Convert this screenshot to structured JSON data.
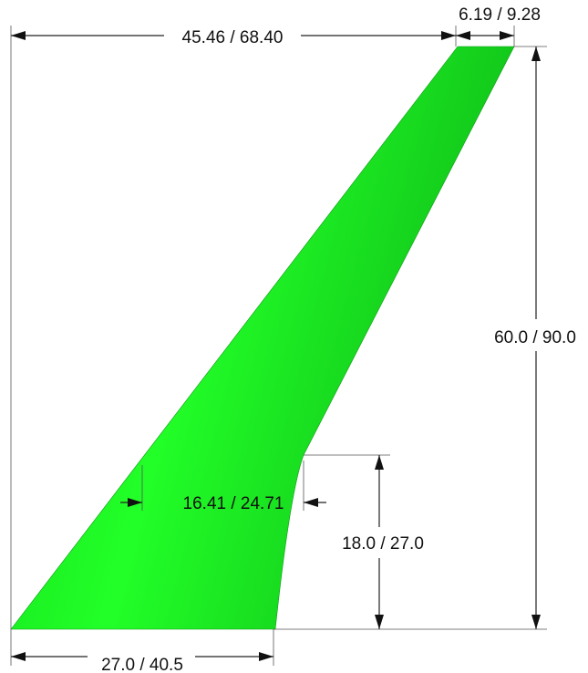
{
  "dimensions": {
    "top_span": "45.46 / 68.40",
    "tip_chord": "6.19 / 9.28",
    "total_height": "60.0 / 90.0",
    "mid_chord": "16.41 / 24.71",
    "kink_height": "18.0 / 27.0",
    "root_chord": "27.0 / 40.5"
  },
  "colors": {
    "shape_fill_light": "#1cff22",
    "shape_fill_dark": "#0fbf18",
    "line": "#222222"
  }
}
